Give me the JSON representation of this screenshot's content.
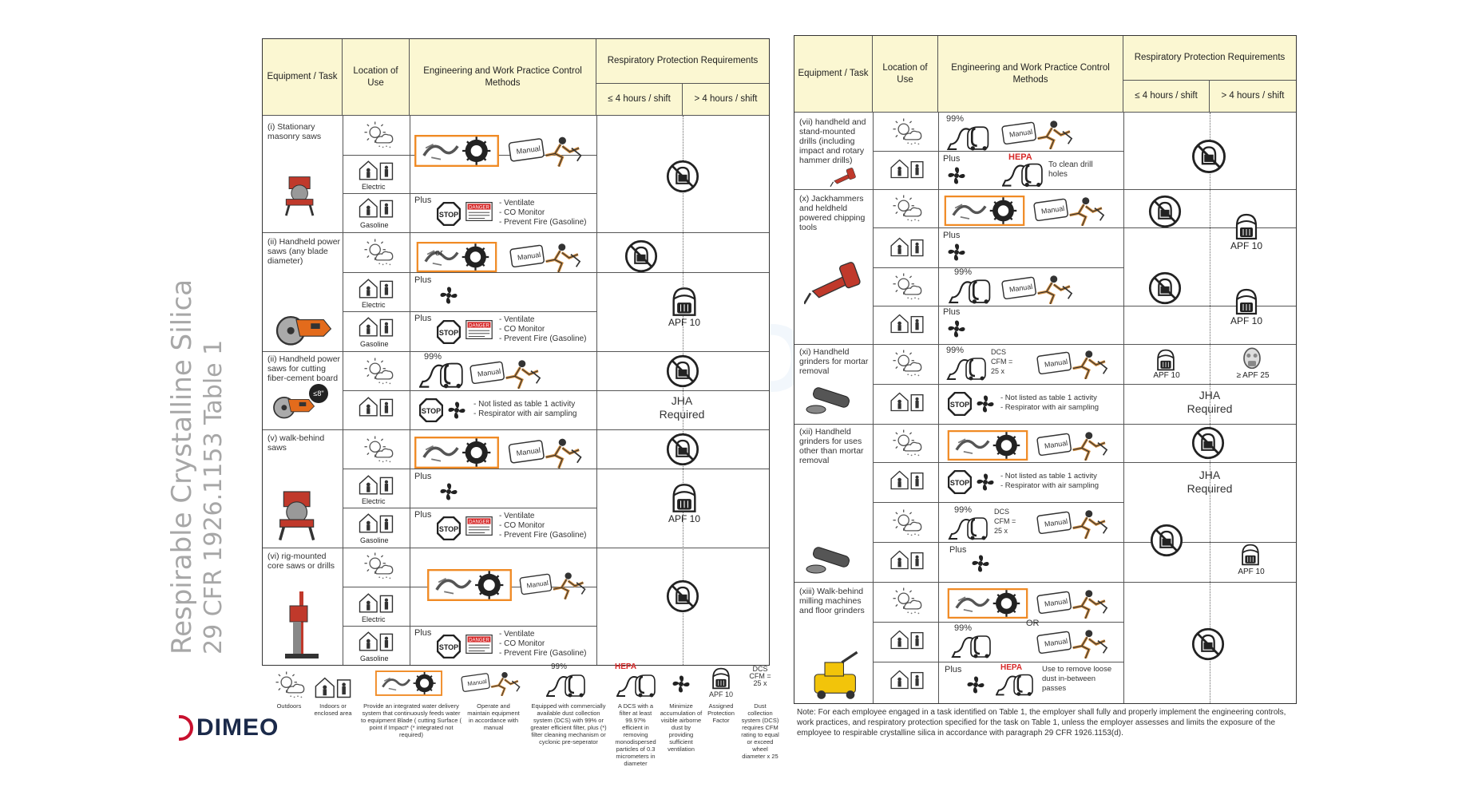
{
  "title": {
    "line1": "Respirable Crystalline Silica",
    "line2": "29 CFR 1926.1153 Table 1"
  },
  "header": {
    "equipment": "Equipment / Task",
    "location": "Location of Use",
    "engineering": "Engineering and Work Practice Control Methods",
    "resp": "Respiratory Protection Requirements",
    "le4": "≤ 4 hours / shift",
    "gt4": "> 4 hours / shift"
  },
  "left_tasks": [
    "(i) Stationary masonry saws",
    "(ii) Handheld power saws (any blade diameter)",
    "(ii) Handheld power saws for cutting fiber-cement board",
    "(v) walk-behind saws",
    "(vi) rig-mounted core saws or drills"
  ],
  "right_tasks": [
    "(vii) handheld and stand-mounted drills (including impact and rotary hammer drills)",
    "(x) Jackhammers and heldheld powered chipping tools",
    "(xi) Handheld grinders for mortar removal",
    "(xii) Handheld grinders for uses other than mortar removal",
    "(xiii) Walk-behind milling machines and floor grinders"
  ],
  "labels": {
    "electric": "Electric",
    "gasoline": "Gasoline",
    "plus": "Plus",
    "or": "or",
    "or_caps": "OR",
    "manual": "Manual",
    "stop": "STOP",
    "danger": "DANGER",
    "hepa": "HEPA",
    "pct99": "99%",
    "ventilate": "- Ventilate",
    "co_monitor": "- CO Monitor",
    "prevent_fire": "- Prevent Fire (Gasoline)",
    "not_listed": "- Not listed as table 1 activity",
    "resp_air": "- Respirator with air sampling",
    "apf10": "APF 10",
    "apf25": "≥ APF 25",
    "jha1": "JHA",
    "jha2": "Required",
    "dcs": "DCS",
    "cfm": "CFM =",
    "cfm25": "25 x",
    "clean_holes": "To clean drill holes",
    "remove_dust": "Use to remove loose dust in-between passes",
    "eight_in": "≤8\""
  },
  "legend": [
    "Outdoors",
    "Indoors or enclosed area",
    "Provide an integrated water delivery system that continuously feeds water to equipment Blade ( cutting Surface ( point if Impact* (* integrated not required)",
    "Operate and maintain equipment in accordance with manual",
    "Equipped with commercially available dust collection system (DCS) with 99% or greater efficient filter, plus (*) filter cleaning mechanism or cyclonic pre-seperator",
    "A DCS with a filter at least 99.97% efficient in removing monodispersed particles of 0.3 micrometers in diameter",
    "Minimize accumulation of visible airborne dust by providing sufficient ventilation",
    "Assigned Protection Factor",
    "Dust collection system (DCS) requires CFM rating to equal or exceed wheel diameter x 25"
  ],
  "note": "Note: For each employee engaged in a task identified on Table 1, the employer shall fully and properly implement the engineering controls, work practices, and respiratory protection specified for the task on Table 1, unless the employer assesses and limits the exposure of the employee to respirable crystalline silica in accordance with paragraph 29 CFR 1926.1153(d).",
  "logo": "DIMEO",
  "colors": {
    "header_bg": "#fbf7d2",
    "orange": "#f08a24",
    "red": "#d62828",
    "logo_red": "#c8102e",
    "navy": "#1b2a4a"
  }
}
